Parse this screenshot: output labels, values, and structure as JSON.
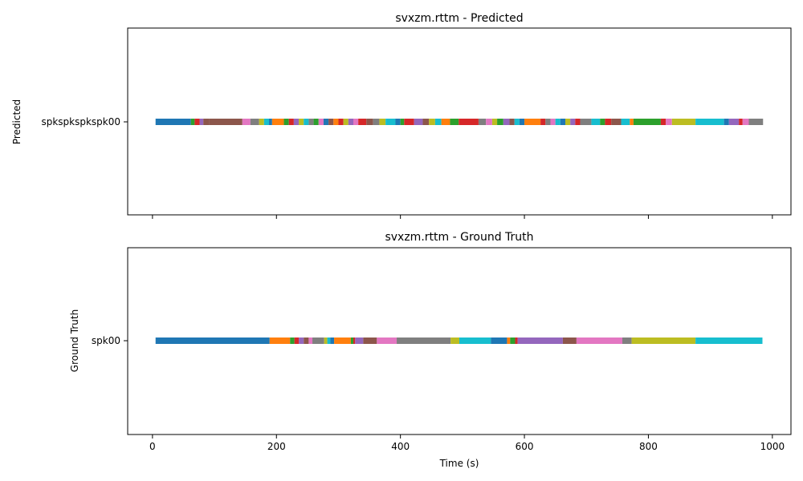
{
  "chart_data": [
    {
      "type": "timeline",
      "title": "svxzm.rttm - Predicted",
      "ylabel": "Predicted",
      "y_tick_label": "spkspkspkspk00",
      "xlim": [
        -40,
        1030
      ],
      "x_ticks": [
        0,
        200,
        400,
        600,
        800,
        1000
      ],
      "show_x_tick_labels": false,
      "segments": [
        [
          5,
          62,
          "#1f77b4"
        ],
        [
          62,
          68,
          "#2ca02c"
        ],
        [
          68,
          76,
          "#d62728"
        ],
        [
          76,
          82,
          "#9467bd"
        ],
        [
          82,
          92,
          "#8c564b"
        ],
        [
          92,
          145,
          "#8c564b"
        ],
        [
          145,
          158,
          "#e377c2"
        ],
        [
          158,
          172,
          "#7f7f7f"
        ],
        [
          172,
          180,
          "#bcbd22"
        ],
        [
          180,
          188,
          "#17becf"
        ],
        [
          188,
          193,
          "#1f77b4"
        ],
        [
          193,
          212,
          "#ff7f0e"
        ],
        [
          212,
          220,
          "#2ca02c"
        ],
        [
          220,
          228,
          "#d62728"
        ],
        [
          228,
          236,
          "#9467bd"
        ],
        [
          236,
          244,
          "#bcbd22"
        ],
        [
          244,
          252,
          "#17becf"
        ],
        [
          252,
          260,
          "#7f7f7f"
        ],
        [
          260,
          268,
          "#2ca02c"
        ],
        [
          268,
          276,
          "#e377c2"
        ],
        [
          276,
          284,
          "#1f77b4"
        ],
        [
          284,
          292,
          "#8c564b"
        ],
        [
          292,
          300,
          "#ff7f0e"
        ],
        [
          300,
          308,
          "#d62728"
        ],
        [
          308,
          316,
          "#bcbd22"
        ],
        [
          316,
          324,
          "#9467bd"
        ],
        [
          324,
          332,
          "#e377c2"
        ],
        [
          332,
          345,
          "#d62728"
        ],
        [
          345,
          356,
          "#8c564b"
        ],
        [
          356,
          366,
          "#7f7f7f"
        ],
        [
          366,
          376,
          "#bcbd22"
        ],
        [
          376,
          392,
          "#17becf"
        ],
        [
          392,
          400,
          "#1f77b4"
        ],
        [
          400,
          406,
          "#2ca02c"
        ],
        [
          406,
          422,
          "#d62728"
        ],
        [
          422,
          436,
          "#9467bd"
        ],
        [
          436,
          446,
          "#8c564b"
        ],
        [
          446,
          456,
          "#bcbd22"
        ],
        [
          456,
          466,
          "#17becf"
        ],
        [
          466,
          480,
          "#ff7f0e"
        ],
        [
          480,
          494,
          "#2ca02c"
        ],
        [
          494,
          526,
          "#d62728"
        ],
        [
          526,
          538,
          "#7f7f7f"
        ],
        [
          538,
          548,
          "#e377c2"
        ],
        [
          548,
          556,
          "#bcbd22"
        ],
        [
          556,
          566,
          "#2ca02c"
        ],
        [
          566,
          576,
          "#9467bd"
        ],
        [
          576,
          584,
          "#8c564b"
        ],
        [
          584,
          592,
          "#17becf"
        ],
        [
          592,
          600,
          "#1f77b4"
        ],
        [
          600,
          626,
          "#ff7f0e"
        ],
        [
          626,
          634,
          "#d62728"
        ],
        [
          634,
          642,
          "#7f7f7f"
        ],
        [
          642,
          650,
          "#e377c2"
        ],
        [
          650,
          658,
          "#17becf"
        ],
        [
          658,
          666,
          "#1f77b4"
        ],
        [
          666,
          674,
          "#bcbd22"
        ],
        [
          674,
          682,
          "#9467bd"
        ],
        [
          682,
          690,
          "#d62728"
        ],
        [
          690,
          708,
          "#7f7f7f"
        ],
        [
          708,
          722,
          "#17becf"
        ],
        [
          722,
          730,
          "#2ca02c"
        ],
        [
          730,
          740,
          "#d62728"
        ],
        [
          740,
          756,
          "#8c564b"
        ],
        [
          756,
          770,
          "#17becf"
        ],
        [
          770,
          776,
          "#ff7f0e"
        ],
        [
          776,
          820,
          "#2ca02c"
        ],
        [
          820,
          828,
          "#d62728"
        ],
        [
          828,
          838,
          "#e377c2"
        ],
        [
          838,
          876,
          "#bcbd22"
        ],
        [
          876,
          922,
          "#17becf"
        ],
        [
          922,
          930,
          "#1f77b4"
        ],
        [
          930,
          946,
          "#9467bd"
        ],
        [
          946,
          952,
          "#d62728"
        ],
        [
          952,
          962,
          "#e377c2"
        ],
        [
          962,
          985,
          "#7f7f7f"
        ]
      ]
    },
    {
      "type": "timeline",
      "title": "svxzm.rttm - Ground Truth",
      "ylabel": "Ground Truth",
      "y_tick_label": "spk00",
      "xlabel": "Time (s)",
      "xlim": [
        -40,
        1030
      ],
      "x_ticks": [
        0,
        200,
        400,
        600,
        800,
        1000
      ],
      "show_x_tick_labels": true,
      "segments": [
        [
          5,
          189,
          "#1f77b4"
        ],
        [
          189,
          222,
          "#ff7f0e"
        ],
        [
          222,
          229,
          "#2ca02c"
        ],
        [
          229,
          236,
          "#d62728"
        ],
        [
          236,
          244,
          "#9467bd"
        ],
        [
          244,
          252,
          "#8c564b"
        ],
        [
          252,
          258,
          "#e377c2"
        ],
        [
          258,
          277,
          "#7f7f7f"
        ],
        [
          277,
          282,
          "#bcbd22"
        ],
        [
          282,
          287,
          "#17becf"
        ],
        [
          287,
          293,
          "#1f77b4"
        ],
        [
          293,
          320,
          "#ff7f0e"
        ],
        [
          320,
          324,
          "#2ca02c"
        ],
        [
          324,
          327,
          "#d62728"
        ],
        [
          327,
          340,
          "#9467bd"
        ],
        [
          340,
          362,
          "#8c564b"
        ],
        [
          362,
          394,
          "#e377c2"
        ],
        [
          394,
          481,
          "#7f7f7f"
        ],
        [
          481,
          495,
          "#bcbd22"
        ],
        [
          495,
          546,
          "#17becf"
        ],
        [
          546,
          572,
          "#1f77b4"
        ],
        [
          572,
          577,
          "#ff7f0e"
        ],
        [
          577,
          585,
          "#2ca02c"
        ],
        [
          585,
          589,
          "#d62728"
        ],
        [
          589,
          662,
          "#9467bd"
        ],
        [
          662,
          684,
          "#8c564b"
        ],
        [
          684,
          758,
          "#e377c2"
        ],
        [
          758,
          773,
          "#7f7f7f"
        ],
        [
          773,
          876,
          "#bcbd22"
        ],
        [
          876,
          984,
          "#17becf"
        ]
      ]
    }
  ]
}
